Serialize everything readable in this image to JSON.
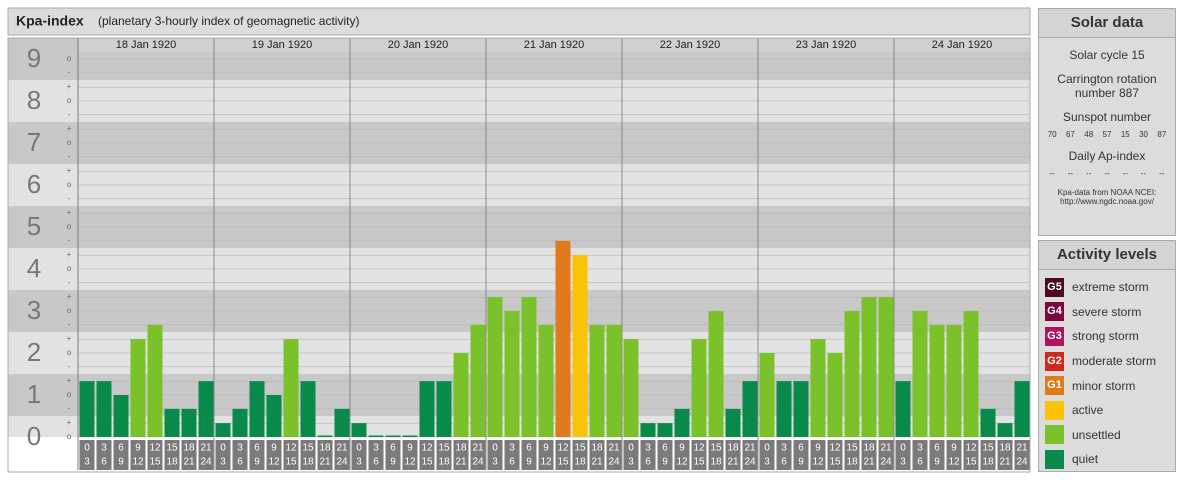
{
  "header": {
    "title": "Kpa-index",
    "subtitle": "(planetary 3-hourly index of geomagnetic activity)"
  },
  "chart_data": {
    "type": "bar",
    "ylim": [
      0,
      9.5
    ],
    "yticks": [
      0,
      1,
      2,
      3,
      4,
      5,
      6,
      7,
      8,
      9
    ],
    "subticks": [
      {
        "value": 0,
        "label": "o"
      },
      {
        "value": 0.33,
        "label": "+"
      },
      {
        "value": 0.67,
        "label": "-"
      },
      {
        "value": 1,
        "label": "o"
      },
      {
        "value": 1.33,
        "label": "+"
      },
      {
        "value": 1.67,
        "label": "-"
      },
      {
        "value": 2,
        "label": "o"
      },
      {
        "value": 2.33,
        "label": "+"
      },
      {
        "value": 2.67,
        "label": "-"
      },
      {
        "value": 3,
        "label": "o"
      },
      {
        "value": 3.33,
        "label": "+"
      },
      {
        "value": 3.67,
        "label": "-"
      },
      {
        "value": 4,
        "label": "o"
      },
      {
        "value": 4.33,
        "label": "+"
      },
      {
        "value": 4.67,
        "label": "-"
      },
      {
        "value": 5,
        "label": "o"
      },
      {
        "value": 5.33,
        "label": "+"
      },
      {
        "value": 5.67,
        "label": "-"
      },
      {
        "value": 6,
        "label": "o"
      },
      {
        "value": 6.33,
        "label": "+"
      },
      {
        "value": 6.67,
        "label": "-"
      },
      {
        "value": 7,
        "label": "o"
      },
      {
        "value": 7.33,
        "label": "+"
      },
      {
        "value": 7.67,
        "label": "-"
      },
      {
        "value": 8,
        "label": "o"
      },
      {
        "value": 8.33,
        "label": "+"
      },
      {
        "value": 8.67,
        "label": "-"
      },
      {
        "value": 9,
        "label": "o"
      }
    ],
    "hour_ranges": [
      {
        "from": 0,
        "to": 3
      },
      {
        "from": 3,
        "to": 6
      },
      {
        "from": 6,
        "to": 9
      },
      {
        "from": 9,
        "to": 12
      },
      {
        "from": 12,
        "to": 15
      },
      {
        "from": 15,
        "to": 18
      },
      {
        "from": 18,
        "to": 21
      },
      {
        "from": 21,
        "to": 24
      }
    ],
    "days": [
      {
        "label": "18 Jan 1920",
        "values": [
          1.33,
          1.33,
          1,
          2.33,
          2.67,
          0.67,
          0.67,
          1.33
        ],
        "colors": [
          "#0a8a4a",
          "#0a8a4a",
          "#0a8a4a",
          "#7bc12a",
          "#7bc12a",
          "#0a8a4a",
          "#0a8a4a",
          "#0a8a4a"
        ]
      },
      {
        "label": "19 Jan 1920",
        "values": [
          0.33,
          0.67,
          1.33,
          1,
          2.33,
          1.33,
          0,
          0.67
        ],
        "colors": [
          "#0a8a4a",
          "#0a8a4a",
          "#0a8a4a",
          "#0a8a4a",
          "#7bc12a",
          "#0a8a4a",
          "#0a8a4a",
          "#0a8a4a"
        ]
      },
      {
        "label": "20 Jan 1920",
        "values": [
          0.33,
          0,
          0,
          0,
          1.33,
          1.33,
          2,
          2.67
        ],
        "colors": [
          "#0a8a4a",
          "#0a8a4a",
          "#0a8a4a",
          "#0a8a4a",
          "#0a8a4a",
          "#0a8a4a",
          "#7bc12a",
          "#7bc12a"
        ]
      },
      {
        "label": "21 Jan 1920",
        "values": [
          3.33,
          3,
          3.33,
          2.67,
          4.67,
          4.33,
          2.67,
          2.67
        ],
        "colors": [
          "#7bc12a",
          "#7bc12a",
          "#7bc12a",
          "#7bc12a",
          "#e07a1d",
          "#f9c30a",
          "#7bc12a",
          "#7bc12a"
        ]
      },
      {
        "label": "22 Jan 1920",
        "values": [
          2.33,
          0.33,
          0.33,
          0.67,
          2.33,
          3,
          0.67,
          1.33
        ],
        "colors": [
          "#7bc12a",
          "#0a8a4a",
          "#0a8a4a",
          "#0a8a4a",
          "#7bc12a",
          "#7bc12a",
          "#0a8a4a",
          "#0a8a4a"
        ]
      },
      {
        "label": "23 Jan 1920",
        "values": [
          2,
          1.33,
          1.33,
          2.33,
          2,
          3,
          3.33,
          3.33
        ],
        "colors": [
          "#7bc12a",
          "#0a8a4a",
          "#0a8a4a",
          "#7bc12a",
          "#7bc12a",
          "#7bc12a",
          "#7bc12a",
          "#7bc12a"
        ]
      },
      {
        "label": "24 Jan 1920",
        "values": [
          1.33,
          3,
          2.67,
          2.67,
          3,
          0.67,
          0.33,
          1.33
        ],
        "colors": [
          "#0a8a4a",
          "#7bc12a",
          "#7bc12a",
          "#7bc12a",
          "#7bc12a",
          "#0a8a4a",
          "#0a8a4a",
          "#0a8a4a"
        ]
      }
    ]
  },
  "solar_data": {
    "title": "Solar data",
    "cycle": "Solar cycle 15",
    "carrington": "Carrington rotation number 887",
    "sunspot_label": "Sunspot number",
    "sunspots": [
      70,
      67,
      48,
      57,
      15,
      30,
      87
    ],
    "ap_label": "Daily Ap-index",
    "ap": [
      "--",
      "--",
      "--",
      "--",
      "--",
      "--",
      "--"
    ],
    "source": "Kpa-data from NOAA NCEI:",
    "source_url": "http://www.ngdc.noaa.gov/"
  },
  "activity_levels": {
    "title": "Activity levels",
    "items": [
      {
        "badge": "G5",
        "label": "extreme storm",
        "color": "#4a0b1f"
      },
      {
        "badge": "G4",
        "label": "severe storm",
        "color": "#7a0a3a"
      },
      {
        "badge": "G3",
        "label": "strong storm",
        "color": "#b0145a"
      },
      {
        "badge": "G2",
        "label": "moderate storm",
        "color": "#d0281f"
      },
      {
        "badge": "G1",
        "label": "minor storm",
        "color": "#e07a1d"
      },
      {
        "label": "active",
        "color": "#f9c30a"
      },
      {
        "label": "unsettled",
        "color": "#7bc12a"
      },
      {
        "label": "quiet",
        "color": "#0a8a4a"
      }
    ]
  }
}
